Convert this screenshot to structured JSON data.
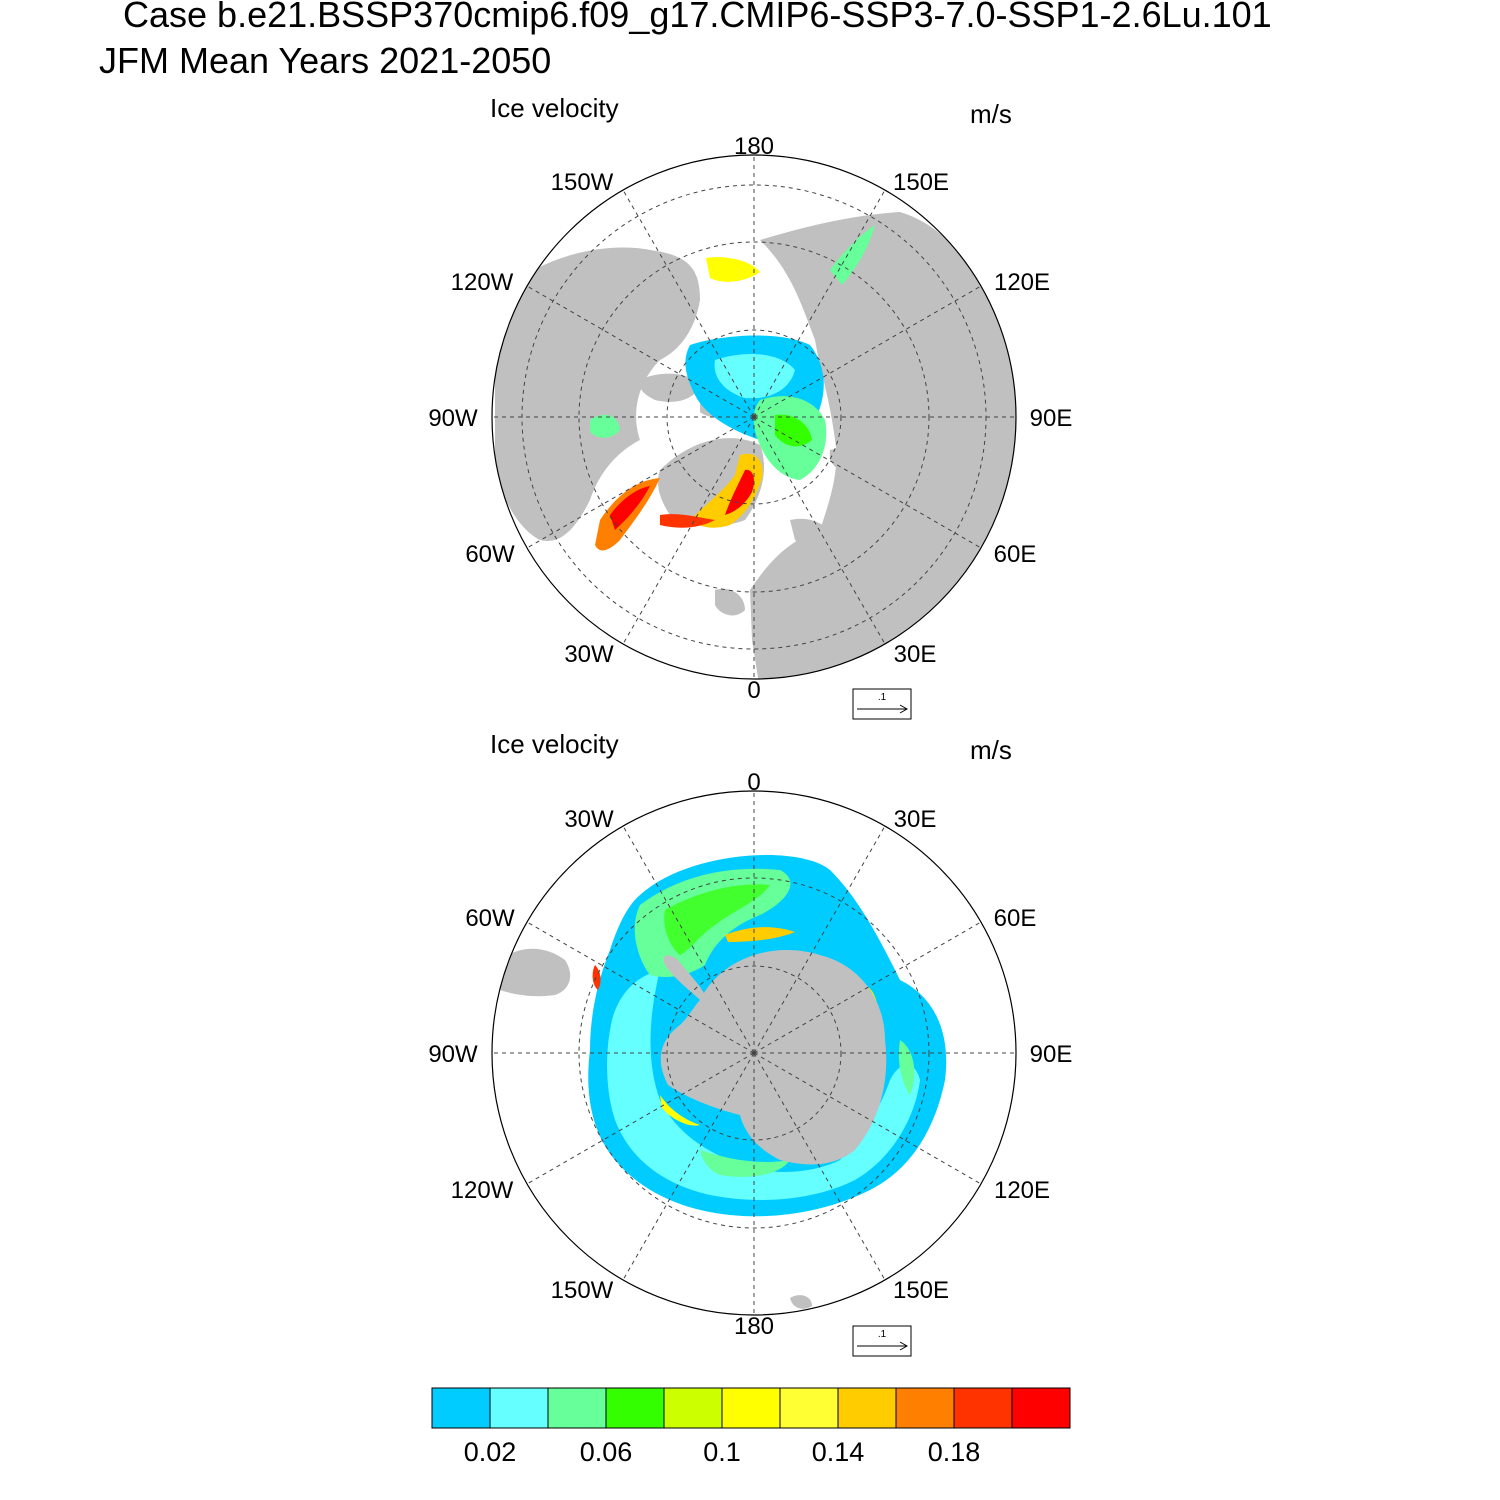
{
  "header": {
    "line1": "Case b.e21.BSSP370cmip6.f09_g17.CMIP6-SSP3-7.0-SSP1-2.6Lu.101",
    "line2": "JFM Mean   Years 2021-2050"
  },
  "colors": {
    "land": "#c0c0c0",
    "grid": "#444444",
    "palette": [
      "#00ccff",
      "#66ffff",
      "#66ff99",
      "#33ff00",
      "#ccff00",
      "#ffff00",
      "#ffff33",
      "#ffcc00",
      "#ff8000",
      "#ff3300",
      "#ff0000"
    ]
  },
  "panels": [
    {
      "name": "arctic",
      "hemisphere": "north",
      "title": "Ice velocity",
      "units": "m/s",
      "lon_labels": [
        "180",
        "150E",
        "120E",
        "90E",
        "60E",
        "30E",
        "0",
        "30W",
        "60W",
        "90W",
        "120W",
        "150W"
      ],
      "ref_vector_label": ".1"
    },
    {
      "name": "antarctic",
      "hemisphere": "south",
      "title": "Ice velocity",
      "units": "m/s",
      "lon_labels": [
        "0",
        "30E",
        "60E",
        "90E",
        "120E",
        "150E",
        "180",
        "150W",
        "120W",
        "90W",
        "60W",
        "30W"
      ],
      "ref_vector_label": ".1"
    }
  ],
  "colorbar": {
    "levels": [
      0.02,
      0.04,
      0.06,
      0.08,
      0.1,
      0.12,
      0.14,
      0.16,
      0.18,
      0.2
    ],
    "tick_labels": [
      "0.02",
      "0.06",
      "0.1",
      "0.14",
      "0.18"
    ]
  }
}
